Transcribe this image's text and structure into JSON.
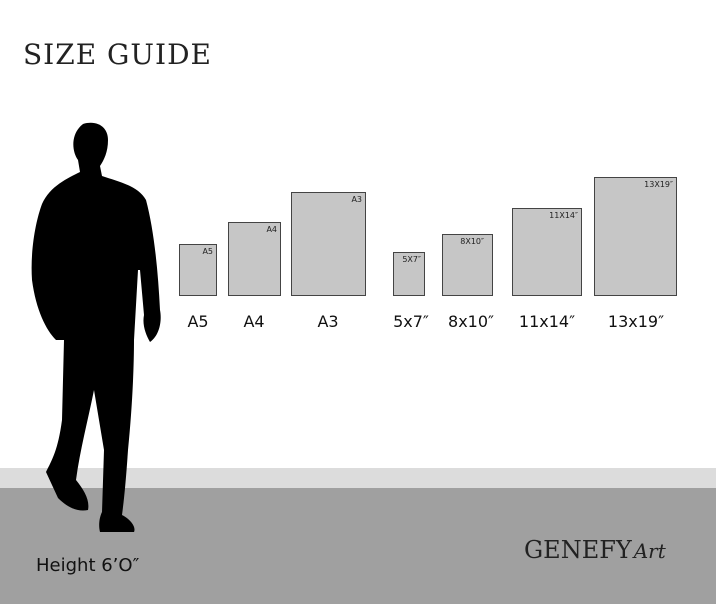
{
  "title": "SIZE GUIDE",
  "sizes": [
    {
      "inner": "A5",
      "label": "A5"
    },
    {
      "inner": "A4",
      "label": "A4"
    },
    {
      "inner": "A3",
      "label": "A3"
    },
    {
      "inner": "5X7″",
      "label": "5x7″"
    },
    {
      "inner": "8X10″",
      "label": "8x10″"
    },
    {
      "inner": "11X14″",
      "label": "11x14″"
    },
    {
      "inner": "13X19″",
      "label": "13x19″"
    }
  ],
  "height_label": "Height 6’O″",
  "brand": {
    "name": "GENEFY",
    "script": "Art"
  },
  "colors": {
    "paper": "#c6c6c6",
    "floor": "#a0a0a0",
    "wall_strip": "#dcdcdc"
  }
}
